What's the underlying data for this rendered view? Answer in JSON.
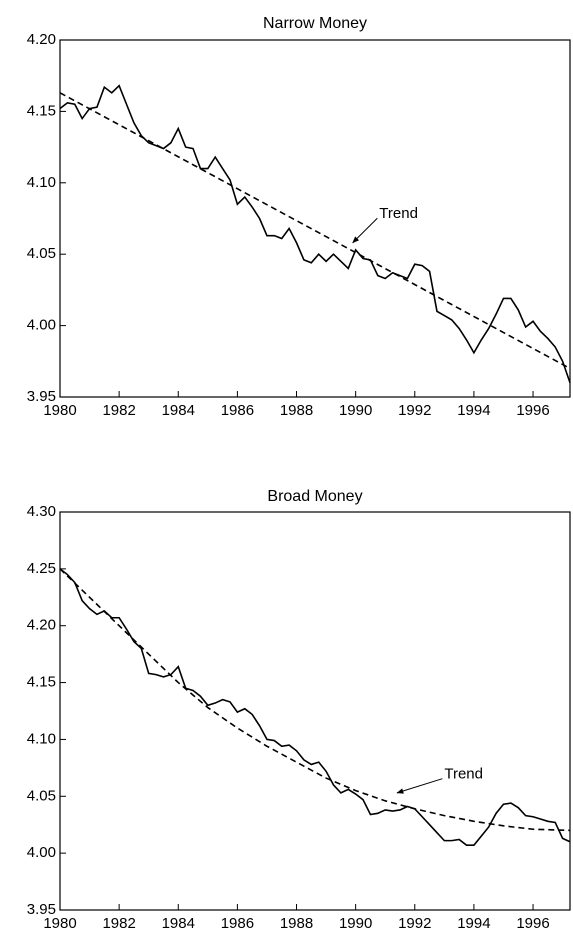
{
  "chart_data": [
    {
      "type": "line",
      "title": "Narrow Money",
      "xlim": [
        1980,
        1997.25
      ],
      "xticks": [
        1980,
        1982,
        1984,
        1986,
        1988,
        1990,
        1992,
        1994,
        1996
      ],
      "ylim": [
        3.95,
        4.2
      ],
      "yticks": [
        3.95,
        {
          "value": 4.0,
          "label": "4.00"
        },
        4.05,
        {
          "value": 4.1,
          "label": "4.10"
        },
        4.15,
        {
          "value": 4.2,
          "label": "4.20"
        }
      ],
      "series": [
        {
          "color": "#000000",
          "style": "solid",
          "x": [
            1980,
            1980.25,
            1980.5,
            1980.75,
            1981,
            1981.25,
            1981.5,
            1981.75,
            1982,
            1982.25,
            1982.5,
            1982.75,
            1983,
            1983.25,
            1983.5,
            1983.75,
            1984,
            1984.25,
            1984.5,
            1984.75,
            1985,
            1985.25,
            1985.5,
            1985.75,
            1986,
            1986.25,
            1986.5,
            1986.75,
            1987,
            1987.25,
            1987.5,
            1987.75,
            1988,
            1988.25,
            1988.5,
            1988.75,
            1989,
            1989.25,
            1989.5,
            1989.75,
            1990,
            1990.25,
            1990.5,
            1990.75,
            1991,
            1991.25,
            1991.5,
            1991.75,
            1992,
            1992.25,
            1992.5,
            1992.75,
            1993,
            1993.25,
            1993.5,
            1993.75,
            1994,
            1994.25,
            1994.5,
            1994.75,
            1995,
            1995.25,
            1995.5,
            1995.75,
            1996,
            1996.25,
            1996.5,
            1996.75,
            1997,
            1997.25
          ],
          "values": [
            4.152,
            4.156,
            4.155,
            4.145,
            4.152,
            4.153,
            4.167,
            4.163,
            4.168,
            4.155,
            4.142,
            4.133,
            4.128,
            4.126,
            4.124,
            4.128,
            4.138,
            4.125,
            4.124,
            4.11,
            4.11,
            4.118,
            4.11,
            4.102,
            4.085,
            4.09,
            4.083,
            4.075,
            4.063,
            4.063,
            4.061,
            4.068,
            4.058,
            4.046,
            4.044,
            4.05,
            4.045,
            4.05,
            4.045,
            4.04,
            4.053,
            4.047,
            4.046,
            4.035,
            4.033,
            4.037,
            4.035,
            4.033,
            4.043,
            4.042,
            4.038,
            4.01,
            4.007,
            4.004,
            3.998,
            3.99,
            3.981,
            3.99,
            3.998,
            4.008,
            4.019,
            4.019,
            4.011,
            3.999,
            4.003,
            3.996,
            3.991,
            3.985,
            3.975,
            3.96
          ]
        },
        {
          "color": "#000000",
          "style": "dashed",
          "x": [
            1980,
            1997.25
          ],
          "values": [
            4.163,
            3.97
          ]
        }
      ],
      "annotations": [
        {
          "text": "Trend",
          "x": 1990.8,
          "y": 4.078,
          "arrow_x": 1989.9,
          "arrow_y": 4.058
        }
      ]
    },
    {
      "type": "line",
      "title": "Broad Money",
      "xlim": [
        1980,
        1997.25
      ],
      "xticks": [
        1980,
        1982,
        1984,
        1986,
        1988,
        1990,
        1992,
        1994,
        1996
      ],
      "ylim": [
        3.95,
        4.3
      ],
      "yticks": [
        3.95,
        {
          "value": 4.0,
          "label": "4.00"
        },
        4.05,
        {
          "value": 4.1,
          "label": "4.10"
        },
        4.15,
        {
          "value": 4.2,
          "label": "4.20"
        },
        4.25,
        {
          "value": 4.3,
          "label": "4.30"
        }
      ],
      "series": [
        {
          "color": "#000000",
          "style": "solid",
          "x": [
            1980,
            1980.25,
            1980.5,
            1980.75,
            1981,
            1981.25,
            1981.5,
            1981.75,
            1982,
            1982.25,
            1982.5,
            1982.75,
            1983,
            1983.25,
            1983.5,
            1983.75,
            1984,
            1984.25,
            1984.5,
            1984.75,
            1985,
            1985.25,
            1985.5,
            1985.75,
            1986,
            1986.25,
            1986.5,
            1986.75,
            1987,
            1987.25,
            1987.5,
            1987.75,
            1988,
            1988.25,
            1988.5,
            1988.75,
            1989,
            1989.25,
            1989.5,
            1989.75,
            1990,
            1990.25,
            1990.5,
            1990.75,
            1991,
            1991.25,
            1991.5,
            1991.75,
            1992,
            1992.25,
            1992.5,
            1992.75,
            1993,
            1993.25,
            1993.5,
            1993.75,
            1994,
            1994.25,
            1994.5,
            1994.75,
            1995,
            1995.25,
            1995.5,
            1995.75,
            1996,
            1996.25,
            1996.5,
            1996.75,
            1997,
            1997.25
          ],
          "values": [
            4.25,
            4.245,
            4.238,
            4.222,
            4.215,
            4.21,
            4.213,
            4.207,
            4.207,
            4.197,
            4.186,
            4.18,
            4.158,
            4.157,
            4.155,
            4.157,
            4.164,
            4.145,
            4.143,
            4.138,
            4.13,
            4.132,
            4.135,
            4.133,
            4.124,
            4.127,
            4.122,
            4.112,
            4.1,
            4.099,
            4.094,
            4.095,
            4.09,
            4.082,
            4.078,
            4.08,
            4.072,
            4.06,
            4.053,
            4.056,
            4.052,
            4.047,
            4.034,
            4.035,
            4.038,
            4.037,
            4.038,
            4.041,
            4.039,
            4.032,
            4.025,
            4.018,
            4.011,
            4.011,
            4.012,
            4.007,
            4.007,
            4.015,
            4.023,
            4.035,
            4.043,
            4.044,
            4.04,
            4.033,
            4.032,
            4.03,
            4.028,
            4.027,
            4.013,
            4.01
          ]
        },
        {
          "color": "#000000",
          "style": "dashed",
          "x": [
            1980,
            1981,
            1982,
            1983,
            1984,
            1985,
            1986,
            1987,
            1988,
            1989,
            1990,
            1991,
            1992,
            1993,
            1994,
            1995,
            1996,
            1997.25
          ],
          "values": [
            4.25,
            4.225,
            4.2,
            4.175,
            4.15,
            4.128,
            4.11,
            4.094,
            4.08,
            4.066,
            4.055,
            4.046,
            4.039,
            4.033,
            4.028,
            4.024,
            4.021,
            4.02
          ]
        }
      ],
      "annotations": [
        {
          "text": "Trend",
          "x": 1993.0,
          "y": 4.069,
          "arrow_x": 1991.4,
          "arrow_y": 4.053
        }
      ]
    }
  ]
}
